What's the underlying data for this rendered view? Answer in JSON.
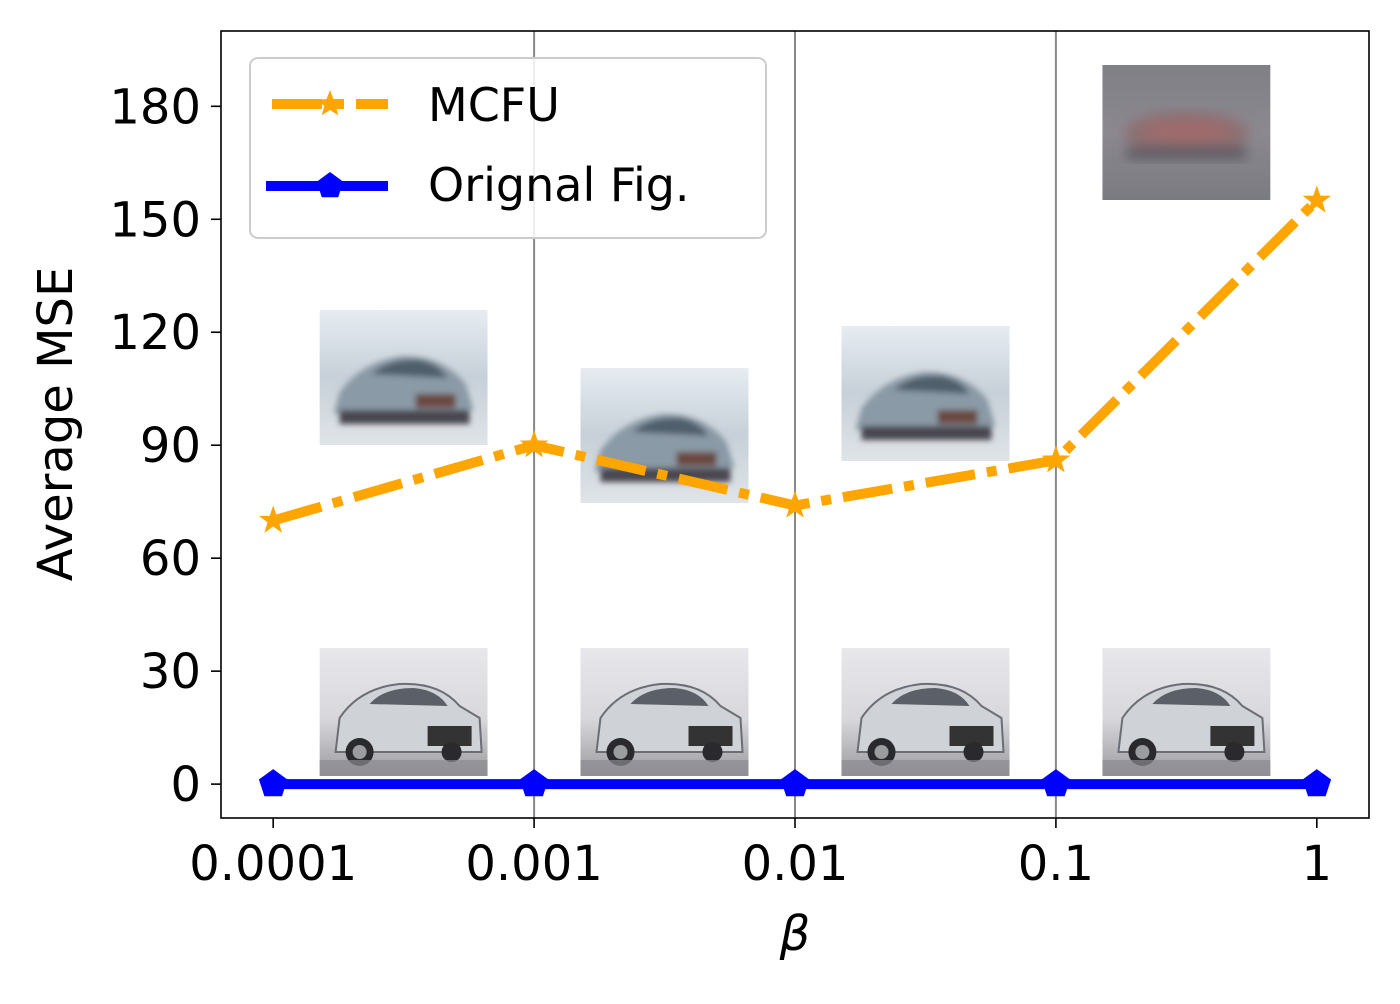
{
  "chart_data": {
    "type": "line",
    "title": "",
    "xlabel": "β",
    "ylabel": "Average MSE",
    "x": [
      "0.0001",
      "0.001",
      "0.01",
      "0.1",
      "1"
    ],
    "x_scale": "log",
    "ylim": [
      -9,
      200
    ],
    "yticks": [
      0,
      30,
      60,
      90,
      120,
      150,
      180
    ],
    "vertical_gridlines_at": [
      "0.001",
      "0.01",
      "0.1"
    ],
    "legend_position": "top-left",
    "series": [
      {
        "name": "MCFU",
        "values": [
          70,
          90,
          74,
          86,
          155
        ],
        "color": "#FFA500",
        "line_style": "dash-dot",
        "marker": "star"
      },
      {
        "name": "Orignal Fig.",
        "values": [
          0,
          0,
          0,
          0,
          0
        ],
        "color": "#0000FF",
        "line_style": "solid",
        "marker": "pentagon"
      }
    ],
    "image_annotations": [
      {
        "kind": "reconstructed-car-thumbnail",
        "near_x": "0.0001-0.001",
        "style": "blurry"
      },
      {
        "kind": "reconstructed-car-thumbnail",
        "near_x": "0.001-0.01",
        "style": "blurry"
      },
      {
        "kind": "reconstructed-car-thumbnail",
        "near_x": "0.01-0.1",
        "style": "blurry"
      },
      {
        "kind": "reconstructed-car-thumbnail",
        "near_x": "0.1-1",
        "style": "very-blurry"
      },
      {
        "kind": "original-car-thumbnail",
        "near_x": "0.0001-0.001",
        "style": "sharp"
      },
      {
        "kind": "original-car-thumbnail",
        "near_x": "0.001-0.01",
        "style": "sharp"
      },
      {
        "kind": "original-car-thumbnail",
        "near_x": "0.01-0.1",
        "style": "sharp"
      },
      {
        "kind": "original-car-thumbnail",
        "near_x": "0.1-1",
        "style": "sharp"
      }
    ]
  }
}
